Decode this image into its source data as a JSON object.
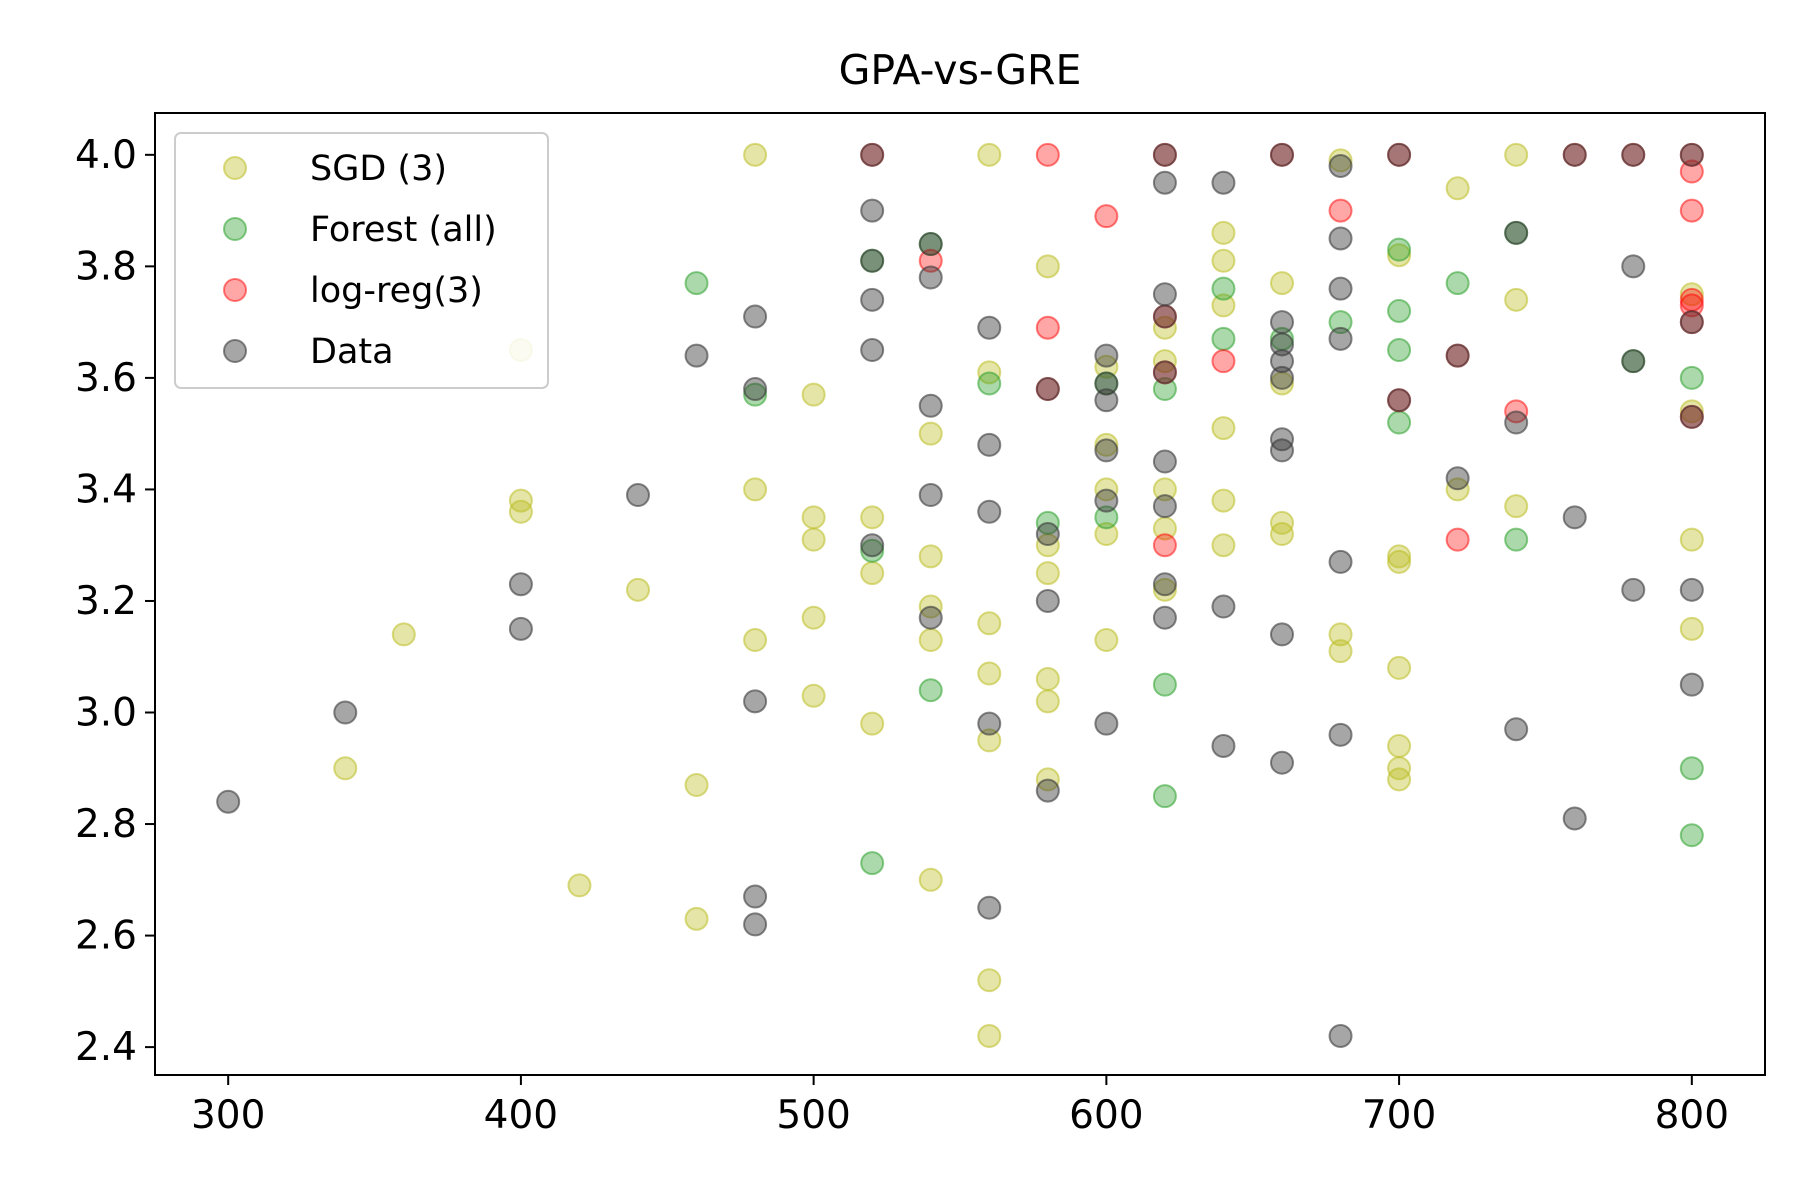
{
  "chart_data": {
    "type": "scatter",
    "title": "GPA-vs-GRE",
    "xlabel": "",
    "ylabel": "",
    "xlim": [
      275,
      825
    ],
    "ylim": [
      2.35,
      4.075
    ],
    "xticks": [
      300,
      400,
      500,
      600,
      700,
      800
    ],
    "yticks": [
      2.4,
      2.6,
      2.8,
      3.0,
      3.2,
      3.4,
      3.6,
      3.8,
      4.0
    ],
    "xtick_labels": [
      "300",
      "400",
      "500",
      "600",
      "700",
      "800"
    ],
    "ytick_labels": [
      "2.4",
      "2.6",
      "2.8",
      "3.0",
      "3.2",
      "3.4",
      "3.6",
      "3.8",
      "4.0"
    ],
    "grid": false,
    "legend_position": "top-left",
    "series": [
      {
        "name": "SGD (3)",
        "color": "#bcbd22",
        "alpha": 0.4,
        "points": [
          [
            340,
            2.9
          ],
          [
            360,
            3.14
          ],
          [
            400,
            3.65
          ],
          [
            400,
            3.38
          ],
          [
            400,
            3.36
          ],
          [
            420,
            2.69
          ],
          [
            440,
            3.22
          ],
          [
            460,
            2.87
          ],
          [
            460,
            2.63
          ],
          [
            480,
            4.0
          ],
          [
            480,
            3.4
          ],
          [
            480,
            3.13
          ],
          [
            500,
            3.57
          ],
          [
            500,
            3.35
          ],
          [
            500,
            3.31
          ],
          [
            500,
            3.17
          ],
          [
            500,
            3.03
          ],
          [
            520,
            3.35
          ],
          [
            520,
            3.25
          ],
          [
            520,
            2.98
          ],
          [
            540,
            3.5
          ],
          [
            540,
            3.28
          ],
          [
            540,
            3.19
          ],
          [
            540,
            3.13
          ],
          [
            540,
            2.7
          ],
          [
            560,
            4.0
          ],
          [
            560,
            3.61
          ],
          [
            560,
            3.16
          ],
          [
            560,
            3.07
          ],
          [
            560,
            2.95
          ],
          [
            560,
            2.52
          ],
          [
            560,
            2.42
          ],
          [
            580,
            3.8
          ],
          [
            580,
            3.3
          ],
          [
            580,
            3.25
          ],
          [
            580,
            3.06
          ],
          [
            580,
            3.02
          ],
          [
            580,
            2.88
          ],
          [
            600,
            3.62
          ],
          [
            600,
            3.48
          ],
          [
            600,
            3.4
          ],
          [
            600,
            3.32
          ],
          [
            600,
            3.13
          ],
          [
            620,
            3.69
          ],
          [
            620,
            3.63
          ],
          [
            620,
            3.4
          ],
          [
            620,
            3.33
          ],
          [
            620,
            3.22
          ],
          [
            640,
            3.86
          ],
          [
            640,
            3.81
          ],
          [
            640,
            3.73
          ],
          [
            640,
            3.51
          ],
          [
            640,
            3.38
          ],
          [
            640,
            3.3
          ],
          [
            660,
            3.77
          ],
          [
            660,
            3.59
          ],
          [
            660,
            3.34
          ],
          [
            660,
            3.32
          ],
          [
            680,
            3.99
          ],
          [
            680,
            3.14
          ],
          [
            680,
            3.11
          ],
          [
            700,
            3.82
          ],
          [
            700,
            3.28
          ],
          [
            700,
            3.27
          ],
          [
            700,
            3.08
          ],
          [
            700,
            2.94
          ],
          [
            700,
            2.9
          ],
          [
            700,
            2.88
          ],
          [
            720,
            3.94
          ],
          [
            720,
            3.4
          ],
          [
            740,
            4.0
          ],
          [
            740,
            3.74
          ],
          [
            740,
            3.37
          ],
          [
            800,
            3.75
          ],
          [
            800,
            3.54
          ],
          [
            800,
            3.31
          ],
          [
            800,
            3.15
          ]
        ]
      },
      {
        "name": "Forest (all)",
        "color": "#2ca02c",
        "alpha": 0.4,
        "points": [
          [
            460,
            3.77
          ],
          [
            480,
            3.57
          ],
          [
            520,
            3.81
          ],
          [
            520,
            3.29
          ],
          [
            520,
            2.73
          ],
          [
            540,
            3.84
          ],
          [
            540,
            3.04
          ],
          [
            560,
            3.59
          ],
          [
            580,
            3.34
          ],
          [
            600,
            3.59
          ],
          [
            600,
            3.35
          ],
          [
            620,
            3.58
          ],
          [
            620,
            3.05
          ],
          [
            620,
            2.85
          ],
          [
            640,
            3.76
          ],
          [
            640,
            3.67
          ],
          [
            660,
            3.67
          ],
          [
            680,
            3.7
          ],
          [
            700,
            3.83
          ],
          [
            700,
            3.72
          ],
          [
            700,
            3.65
          ],
          [
            700,
            3.52
          ],
          [
            720,
            3.77
          ],
          [
            740,
            3.86
          ],
          [
            740,
            3.31
          ],
          [
            780,
            3.63
          ],
          [
            800,
            3.6
          ],
          [
            800,
            2.9
          ],
          [
            800,
            2.78
          ]
        ]
      },
      {
        "name": "log-reg(3)",
        "color": "#ff0000",
        "alpha": 0.35,
        "points": [
          [
            520,
            4.0
          ],
          [
            540,
            3.81
          ],
          [
            580,
            4.0
          ],
          [
            580,
            3.69
          ],
          [
            580,
            3.58
          ],
          [
            600,
            3.89
          ],
          [
            620,
            4.0
          ],
          [
            620,
            3.71
          ],
          [
            620,
            3.61
          ],
          [
            620,
            3.3
          ],
          [
            640,
            3.63
          ],
          [
            660,
            4.0
          ],
          [
            680,
            3.9
          ],
          [
            700,
            4.0
          ],
          [
            700,
            3.56
          ],
          [
            720,
            3.64
          ],
          [
            720,
            3.31
          ],
          [
            740,
            3.54
          ],
          [
            760,
            4.0
          ],
          [
            780,
            4.0
          ],
          [
            800,
            4.0
          ],
          [
            800,
            3.97
          ],
          [
            800,
            3.9
          ],
          [
            800,
            3.74
          ],
          [
            800,
            3.73
          ],
          [
            800,
            3.7
          ],
          [
            800,
            3.53
          ]
        ]
      },
      {
        "name": "Data",
        "color": "#3a3a3a",
        "alpha": 0.45,
        "points": [
          [
            300,
            2.84
          ],
          [
            340,
            3.0
          ],
          [
            400,
            3.23
          ],
          [
            400,
            3.15
          ],
          [
            440,
            3.39
          ],
          [
            460,
            3.64
          ],
          [
            480,
            3.71
          ],
          [
            480,
            3.58
          ],
          [
            480,
            3.02
          ],
          [
            480,
            2.67
          ],
          [
            480,
            2.62
          ],
          [
            520,
            4.0
          ],
          [
            520,
            3.9
          ],
          [
            520,
            3.81
          ],
          [
            520,
            3.74
          ],
          [
            520,
            3.65
          ],
          [
            520,
            3.3
          ],
          [
            540,
            3.84
          ],
          [
            540,
            3.78
          ],
          [
            540,
            3.55
          ],
          [
            540,
            3.39
          ],
          [
            540,
            3.17
          ],
          [
            560,
            3.69
          ],
          [
            560,
            3.48
          ],
          [
            560,
            3.36
          ],
          [
            560,
            2.98
          ],
          [
            560,
            2.65
          ],
          [
            580,
            3.58
          ],
          [
            580,
            3.32
          ],
          [
            580,
            3.2
          ],
          [
            580,
            2.86
          ],
          [
            600,
            3.64
          ],
          [
            600,
            3.59
          ],
          [
            600,
            3.56
          ],
          [
            600,
            3.47
          ],
          [
            600,
            3.38
          ],
          [
            600,
            2.98
          ],
          [
            620,
            4.0
          ],
          [
            620,
            3.95
          ],
          [
            620,
            3.75
          ],
          [
            620,
            3.71
          ],
          [
            620,
            3.61
          ],
          [
            620,
            3.45
          ],
          [
            620,
            3.37
          ],
          [
            620,
            3.23
          ],
          [
            620,
            3.17
          ],
          [
            640,
            3.95
          ],
          [
            640,
            3.19
          ],
          [
            640,
            2.94
          ],
          [
            660,
            4.0
          ],
          [
            660,
            3.7
          ],
          [
            660,
            3.66
          ],
          [
            660,
            3.63
          ],
          [
            660,
            3.6
          ],
          [
            660,
            3.49
          ],
          [
            660,
            3.47
          ],
          [
            660,
            3.14
          ],
          [
            660,
            2.91
          ],
          [
            680,
            3.98
          ],
          [
            680,
            3.85
          ],
          [
            680,
            3.76
          ],
          [
            680,
            3.67
          ],
          [
            680,
            3.27
          ],
          [
            680,
            2.96
          ],
          [
            680,
            2.42
          ],
          [
            700,
            4.0
          ],
          [
            700,
            3.56
          ],
          [
            720,
            3.64
          ],
          [
            720,
            3.42
          ],
          [
            740,
            3.86
          ],
          [
            740,
            3.52
          ],
          [
            740,
            2.97
          ],
          [
            760,
            4.0
          ],
          [
            760,
            3.35
          ],
          [
            760,
            2.81
          ],
          [
            780,
            4.0
          ],
          [
            780,
            3.8
          ],
          [
            780,
            3.63
          ],
          [
            780,
            3.22
          ],
          [
            800,
            4.0
          ],
          [
            800,
            3.7
          ],
          [
            800,
            3.53
          ],
          [
            800,
            3.22
          ],
          [
            800,
            3.05
          ]
        ]
      }
    ]
  }
}
